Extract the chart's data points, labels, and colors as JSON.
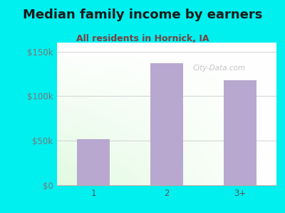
{
  "title": "Median family income by earners",
  "subtitle": "All residents in Hornick, IA",
  "categories": [
    "1",
    "2",
    "3+"
  ],
  "values": [
    52000,
    137000,
    118000
  ],
  "bar_color": "#b8a8d0",
  "background_color": "#00EFEF",
  "title_color": "#1a1a1a",
  "subtitle_color": "#7a4040",
  "yticks": [
    0,
    50000,
    100000,
    150000
  ],
  "ytick_labels": [
    "$0",
    "$50k",
    "$100k",
    "$150k"
  ],
  "ylim": [
    0,
    160000
  ],
  "title_fontsize": 13,
  "subtitle_fontsize": 9,
  "tick_fontsize": 8.5,
  "watermark": "City-Data.com"
}
